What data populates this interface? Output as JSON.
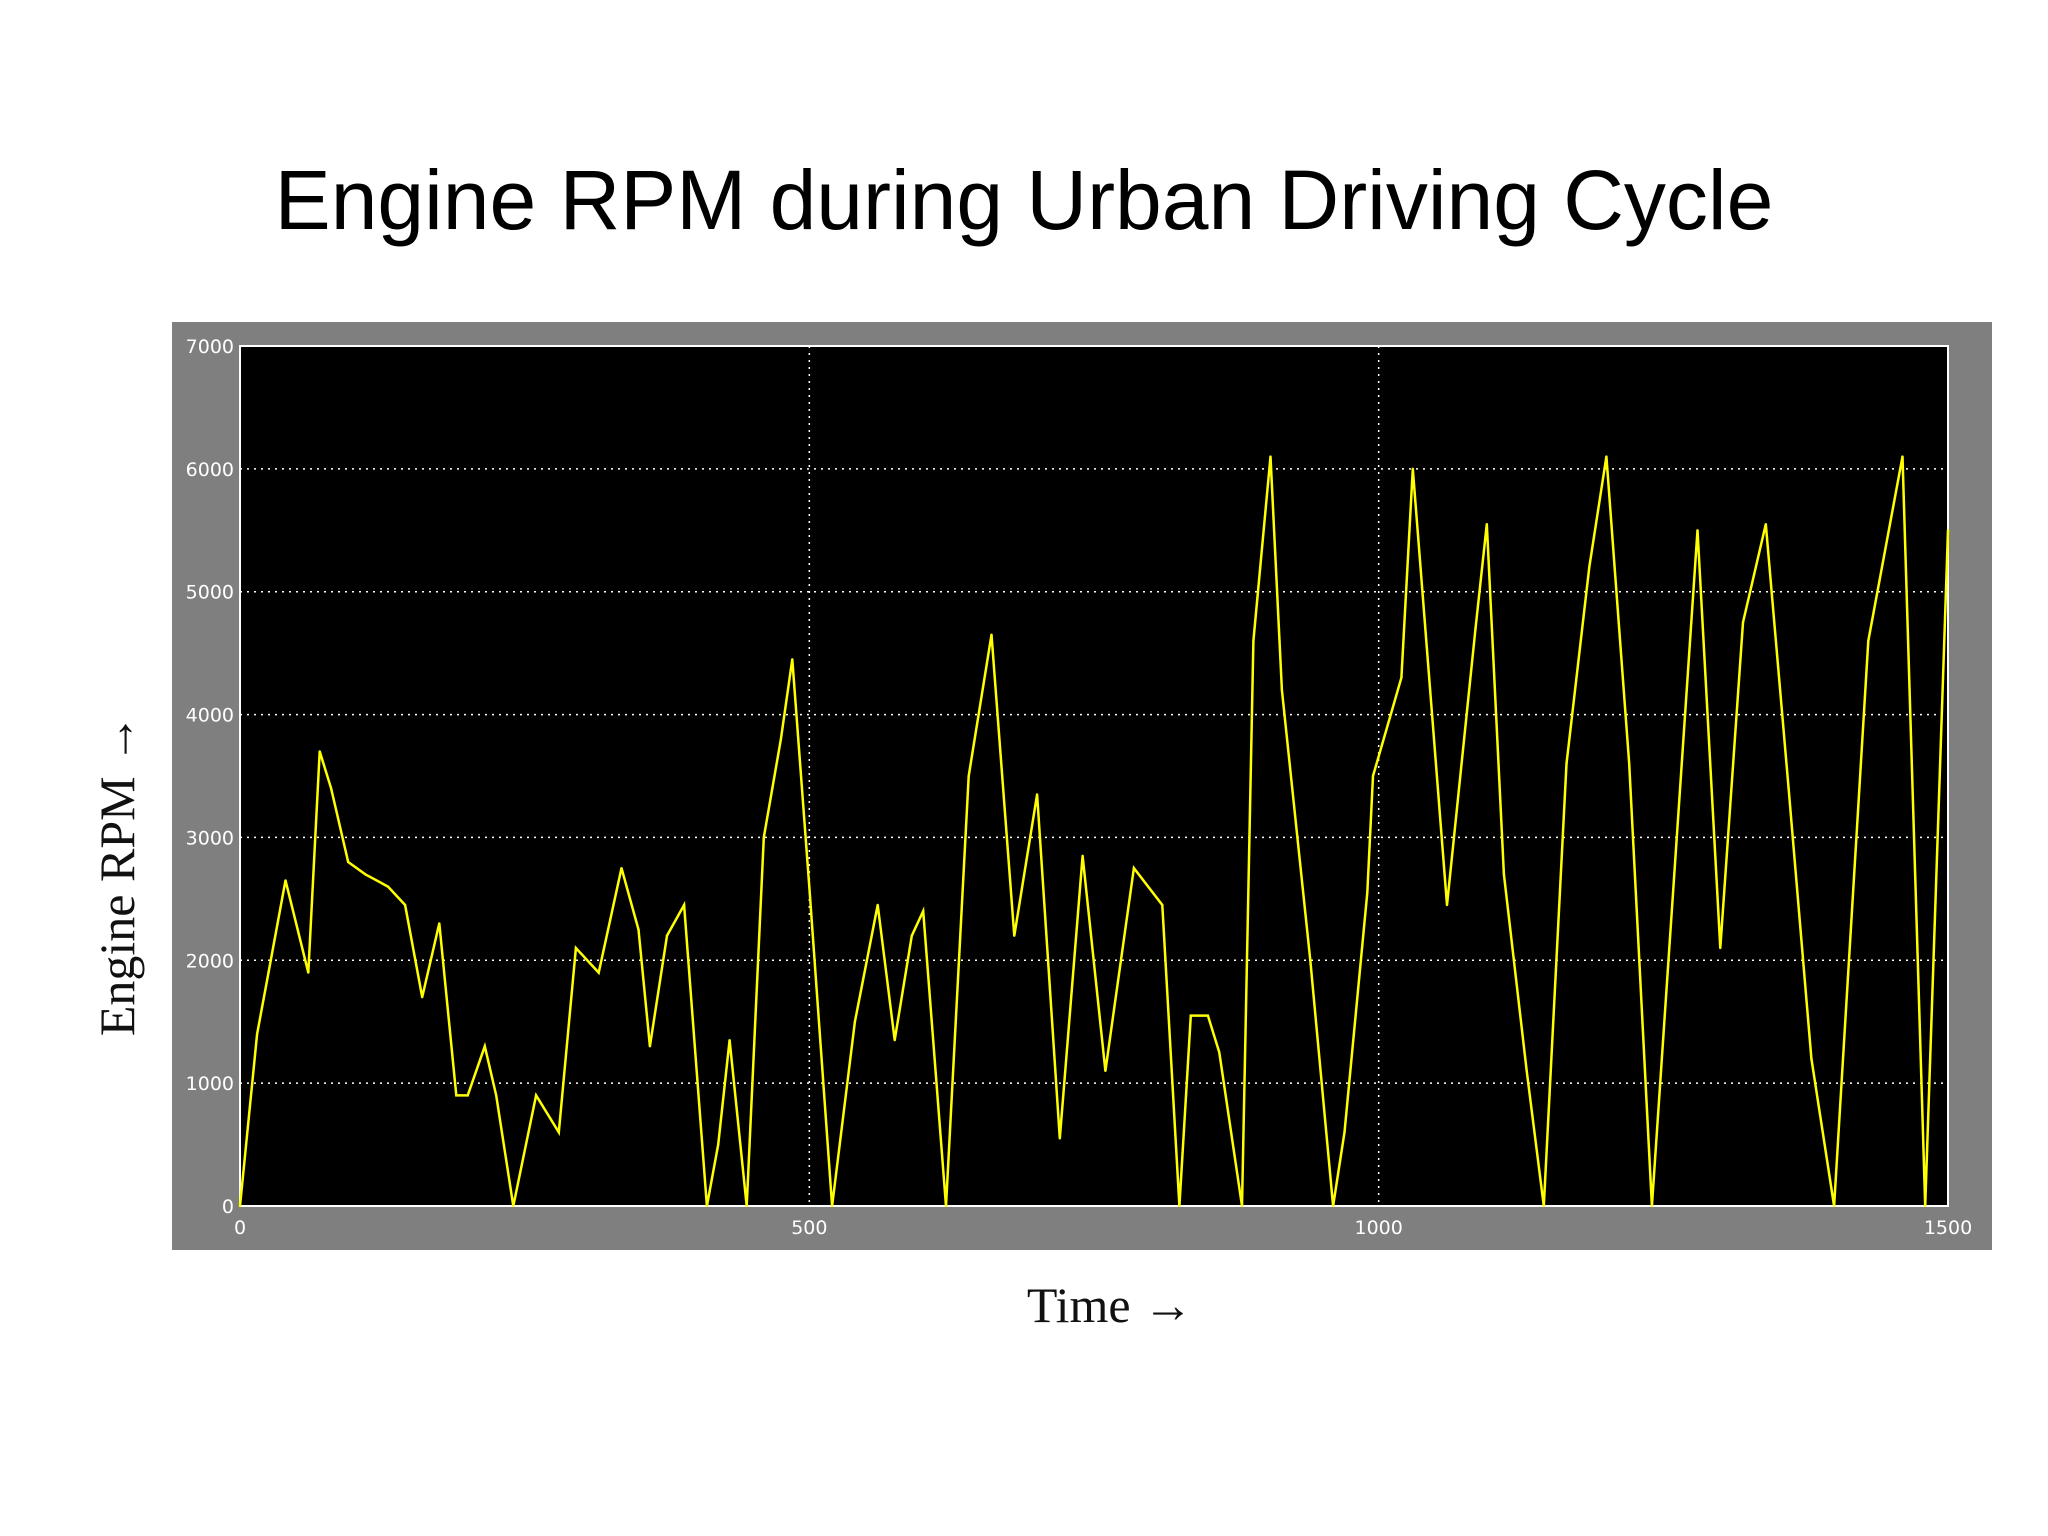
{
  "slide": {
    "title": "Engine RPM during Urban Driving Cycle"
  },
  "chart_data": {
    "type": "line",
    "xlabel": "Time →",
    "ylabel": "Engine RPM →",
    "xlim": [
      0,
      1500
    ],
    "ylim": [
      0,
      7000
    ],
    "xticks": [
      0,
      500,
      1000,
      1500
    ],
    "yticks": [
      0,
      1000,
      2000,
      3000,
      4000,
      5000,
      6000,
      7000
    ],
    "grid": true,
    "colors": {
      "frame": "#7f7f7f",
      "plot_background": "#000000",
      "grid": "#ffffff",
      "line": "#ffff00"
    },
    "series": [
      {
        "x": [
          0,
          15,
          25,
          40,
          60,
          70,
          80,
          95,
          110,
          130,
          145,
          160,
          175,
          190,
          200,
          215,
          225,
          240,
          260,
          280,
          295,
          315,
          335,
          350,
          360,
          375,
          390,
          410,
          420,
          430,
          445,
          460,
          475,
          485,
          500,
          520,
          540,
          560,
          575,
          590,
          600,
          620,
          640,
          660,
          680,
          700,
          720,
          740,
          760,
          785,
          810,
          825,
          835,
          850,
          860,
          880,
          890,
          905,
          915,
          940,
          960,
          970,
          990,
          995,
          1020,
          1030,
          1060,
          1085,
          1095,
          1110,
          1130,
          1145,
          1165,
          1185,
          1200,
          1220,
          1240,
          1260,
          1280,
          1300,
          1320,
          1340,
          1360,
          1380,
          1400,
          1430,
          1460,
          1480,
          1500
        ],
        "values": [
          0,
          1400,
          1900,
          2650,
          1900,
          3700,
          3400,
          2800,
          2700,
          2600,
          2450,
          1700,
          2300,
          900,
          900,
          1300,
          900,
          0,
          900,
          600,
          2100,
          1900,
          2750,
          2250,
          1300,
          2200,
          2450,
          0,
          500,
          1350,
          0,
          3000,
          3800,
          4450,
          2600,
          0,
          1500,
          2450,
          1350,
          2200,
          2400,
          0,
          3500,
          4650,
          2200,
          3350,
          550,
          2850,
          1100,
          2750,
          2450,
          0,
          1550,
          1550,
          1250,
          0,
          4600,
          6100,
          4200,
          2000,
          0,
          600,
          2550,
          3500,
          4300,
          6000,
          2450,
          4700,
          5550,
          2700,
          1100,
          0,
          3600,
          5200,
          6100,
          3600,
          0,
          2750,
          5500,
          2100,
          4750,
          5550,
          3400,
          1200,
          0,
          4600,
          6100,
          0,
          5500
        ]
      }
    ]
  }
}
